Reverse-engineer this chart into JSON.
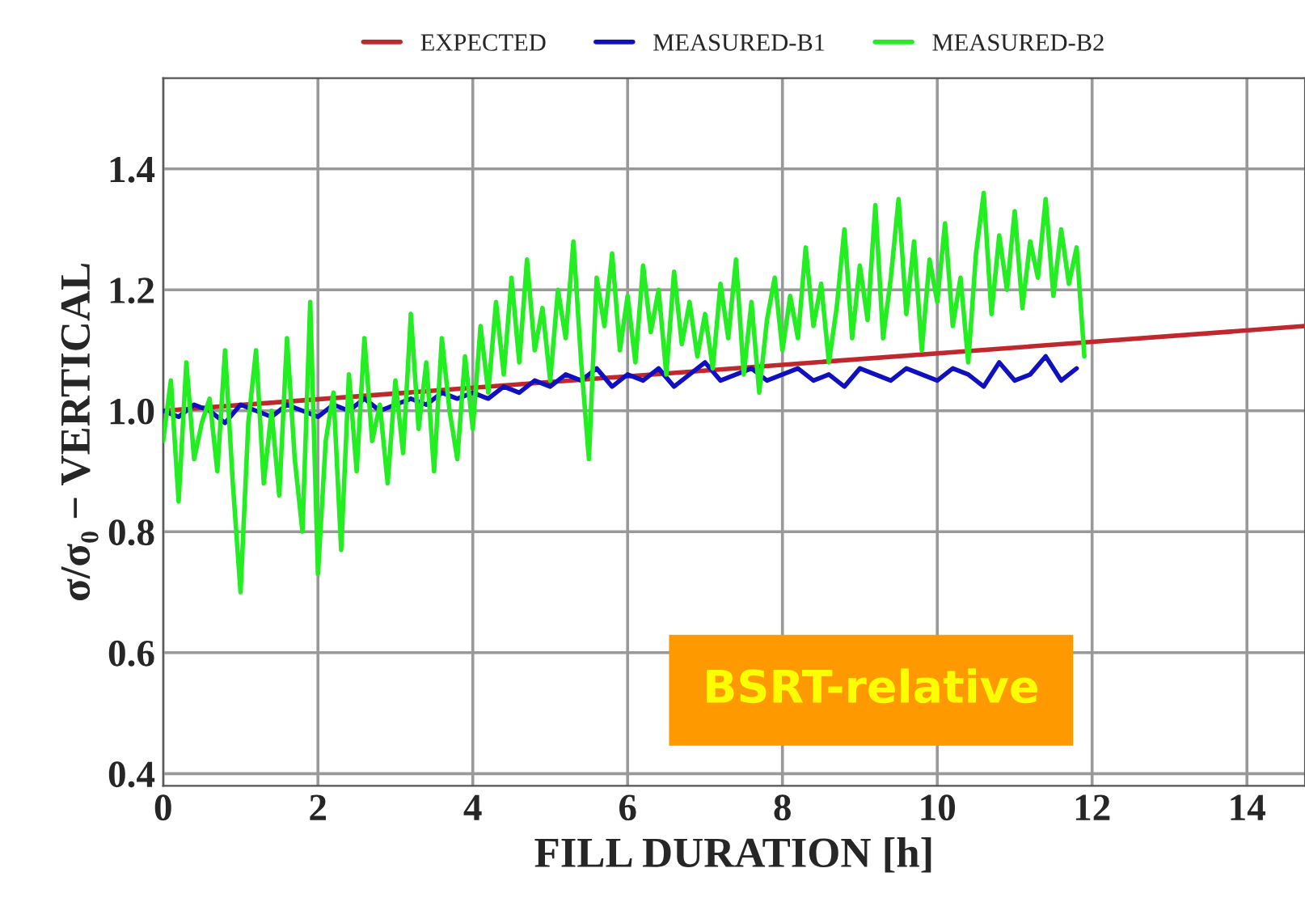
{
  "chart_data": {
    "type": "line",
    "xlabel": "FILL DURATION [h]",
    "ylabel": "σ/σ₀ − VERTICAL",
    "xlim": [
      0,
      14.75
    ],
    "ylim": [
      0.38,
      1.55
    ],
    "xticks": [
      0,
      2,
      4,
      6,
      8,
      10,
      12,
      14
    ],
    "yticks": [
      {
        "value": 0.4,
        "label": "0.4"
      },
      {
        "value": 0.6,
        "label": "0.6"
      },
      {
        "value": 0.8,
        "label": "0.8"
      },
      {
        "value": 1.0,
        "label": "1.0"
      },
      {
        "value": 1.2,
        "label": "1.2"
      },
      {
        "value": 1.4,
        "label": "1.4"
      }
    ],
    "grid": true,
    "legend": "top",
    "marker": "none",
    "line_style": "solid",
    "annotations": [
      "BSRT-relative"
    ],
    "series": [
      {
        "name": "EXPECTED",
        "color": "#c0282d",
        "x": [
          0,
          14.75
        ],
        "values": [
          1.0,
          1.14
        ]
      },
      {
        "name": "MEASURED-B1",
        "color": "#1010c0",
        "x": [
          0,
          0.2,
          0.4,
          0.6,
          0.8,
          1.0,
          1.2,
          1.4,
          1.6,
          1.8,
          2.0,
          2.2,
          2.4,
          2.6,
          2.8,
          3.0,
          3.2,
          3.4,
          3.6,
          3.8,
          4.0,
          4.2,
          4.4,
          4.6,
          4.8,
          5.0,
          5.2,
          5.4,
          5.6,
          5.8,
          6.0,
          6.2,
          6.4,
          6.6,
          6.8,
          7.0,
          7.2,
          7.4,
          7.6,
          7.8,
          8.0,
          8.2,
          8.4,
          8.6,
          8.8,
          9.0,
          9.2,
          9.4,
          9.6,
          9.8,
          10.0,
          10.2,
          10.4,
          10.6,
          10.8,
          11.0,
          11.2,
          11.4,
          11.6,
          11.8
        ],
        "values": [
          1.0,
          0.99,
          1.01,
          1.0,
          0.98,
          1.01,
          1.0,
          0.99,
          1.01,
          1.0,
          0.99,
          1.01,
          1.0,
          1.02,
          1.0,
          1.01,
          1.02,
          1.01,
          1.03,
          1.02,
          1.03,
          1.02,
          1.04,
          1.03,
          1.05,
          1.04,
          1.06,
          1.05,
          1.07,
          1.04,
          1.06,
          1.05,
          1.07,
          1.04,
          1.06,
          1.08,
          1.05,
          1.06,
          1.07,
          1.05,
          1.06,
          1.07,
          1.05,
          1.06,
          1.04,
          1.07,
          1.06,
          1.05,
          1.07,
          1.06,
          1.05,
          1.07,
          1.06,
          1.04,
          1.08,
          1.05,
          1.06,
          1.09,
          1.05,
          1.07
        ]
      },
      {
        "name": "MEASURED-B2",
        "color": "#22ee22",
        "x": [
          0,
          0.1,
          0.2,
          0.3,
          0.4,
          0.5,
          0.6,
          0.7,
          0.8,
          0.9,
          1.0,
          1.1,
          1.2,
          1.3,
          1.4,
          1.5,
          1.6,
          1.7,
          1.8,
          1.9,
          2.0,
          2.1,
          2.2,
          2.3,
          2.4,
          2.5,
          2.6,
          2.7,
          2.8,
          2.9,
          3.0,
          3.1,
          3.2,
          3.3,
          3.4,
          3.5,
          3.6,
          3.7,
          3.8,
          3.9,
          4.0,
          4.1,
          4.2,
          4.3,
          4.4,
          4.5,
          4.6,
          4.7,
          4.8,
          4.9,
          5.0,
          5.1,
          5.2,
          5.3,
          5.4,
          5.5,
          5.6,
          5.7,
          5.8,
          5.9,
          6.0,
          6.1,
          6.2,
          6.3,
          6.4,
          6.5,
          6.6,
          6.7,
          6.8,
          6.9,
          7.0,
          7.1,
          7.2,
          7.3,
          7.4,
          7.5,
          7.6,
          7.7,
          7.8,
          7.9,
          8.0,
          8.1,
          8.2,
          8.3,
          8.4,
          8.5,
          8.6,
          8.7,
          8.8,
          8.9,
          9.0,
          9.1,
          9.2,
          9.3,
          9.4,
          9.5,
          9.6,
          9.7,
          9.8,
          9.9,
          10.0,
          10.1,
          10.2,
          10.3,
          10.4,
          10.5,
          10.6,
          10.7,
          10.8,
          10.9,
          11.0,
          11.1,
          11.2,
          11.3,
          11.4,
          11.5,
          11.6,
          11.7,
          11.8,
          11.9
        ],
        "values": [
          0.95,
          1.05,
          0.85,
          1.08,
          0.92,
          0.98,
          1.02,
          0.9,
          1.1,
          0.88,
          0.7,
          0.98,
          1.1,
          0.88,
          1.0,
          0.86,
          1.12,
          0.92,
          0.8,
          1.18,
          0.73,
          0.95,
          1.03,
          0.77,
          1.06,
          0.9,
          1.12,
          0.95,
          1.01,
          0.88,
          1.05,
          0.93,
          1.16,
          0.97,
          1.08,
          0.9,
          1.12,
          1.0,
          0.92,
          1.09,
          0.97,
          1.14,
          1.03,
          1.18,
          1.06,
          1.22,
          1.08,
          1.25,
          1.1,
          1.17,
          1.05,
          1.2,
          1.12,
          1.28,
          1.08,
          0.92,
          1.22,
          1.14,
          1.26,
          1.1,
          1.19,
          1.08,
          1.24,
          1.13,
          1.2,
          1.06,
          1.23,
          1.11,
          1.18,
          1.09,
          1.16,
          1.07,
          1.21,
          1.12,
          1.25,
          1.06,
          1.18,
          1.03,
          1.15,
          1.22,
          1.1,
          1.19,
          1.12,
          1.27,
          1.14,
          1.21,
          1.08,
          1.17,
          1.3,
          1.12,
          1.24,
          1.15,
          1.34,
          1.12,
          1.22,
          1.35,
          1.16,
          1.28,
          1.1,
          1.25,
          1.18,
          1.31,
          1.14,
          1.22,
          1.08,
          1.26,
          1.36,
          1.16,
          1.29,
          1.2,
          1.33,
          1.17,
          1.28,
          1.22,
          1.35,
          1.19,
          1.3,
          1.21,
          1.27,
          1.09
        ]
      }
    ]
  }
}
